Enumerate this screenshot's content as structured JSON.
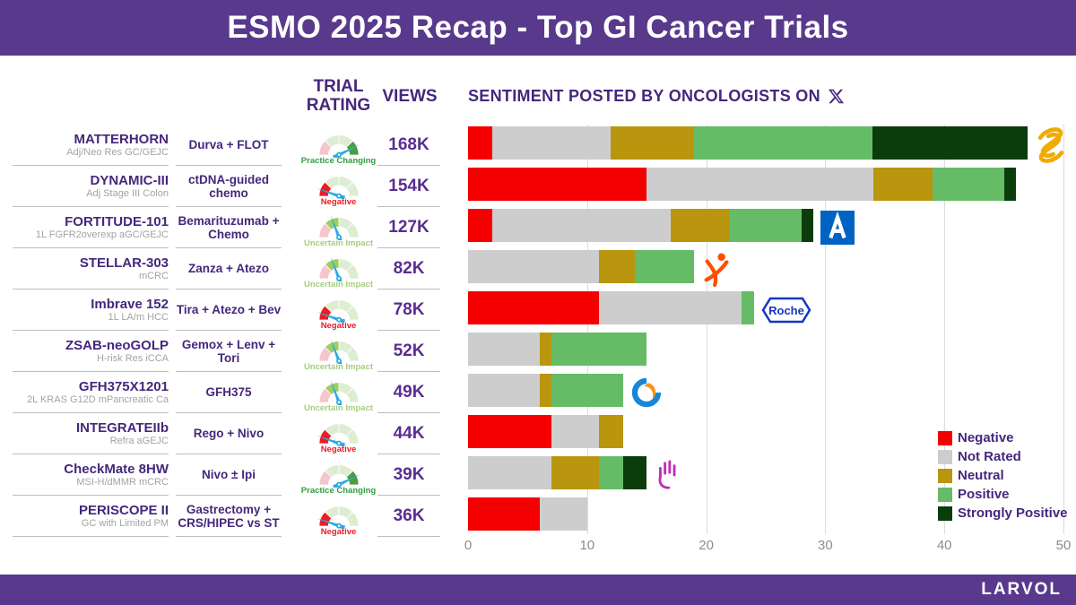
{
  "header": {
    "title": "ESMO 2025 Recap - Top GI Cancer Trials"
  },
  "footer": {
    "brand": "LARVOL"
  },
  "columns": {
    "trial_rating": "TRIAL RATING",
    "views": "VIEWS"
  },
  "chart_title": "SENTIMENT POSTED BY ONCOLOGISTS ON",
  "colors": {
    "brand_purple": "#59398C",
    "text_purple": "#45277C",
    "views_purple": "#5A2D91",
    "needle_cyan": "#2BAAE2",
    "axis_gray": "#8C8C8C"
  },
  "rating_styles": {
    "practice_changing": {
      "label": "Practice Changing",
      "label_color": "#2F9E3E",
      "segments": [
        "#F5C6CB",
        "#DDEDD2",
        "#DDEDD2",
        "#4C9E3C"
      ],
      "needle_deg": 26
    },
    "negative": {
      "label": "Negative",
      "label_color": "#ED1B24",
      "segments": [
        "#ED1B24",
        "#DDEDD2",
        "#DDEDD2",
        "#DDEDD2"
      ],
      "needle_deg": 161
    },
    "uncertain": {
      "label": "Uncertain Impact",
      "label_color": "#A5CE7D",
      "segments": [
        "#F5C6CB",
        "#9CCE62",
        "#DDEDD2",
        "#DDEDD2"
      ],
      "needle_deg": 111
    }
  },
  "rows": [
    {
      "trial": "MATTERHORN",
      "subtitle": "Adj/Neo Res GC/GEJC",
      "treatment": "Durva + FLOT",
      "rating": "practice_changing",
      "views": "168K",
      "logo": "astrazeneca-logo"
    },
    {
      "trial": "DYNAMIC-III",
      "subtitle": "Adj Stage III Colon",
      "treatment": "ctDNA-guided chemo",
      "rating": "negative",
      "views": "154K",
      "logo": null
    },
    {
      "trial": "FORTITUDE-101",
      "subtitle": "1L FGFR2overexp aGC/GEJC",
      "treatment": "Bemarituzumab + Chemo",
      "rating": "uncertain",
      "views": "127K",
      "logo": "amgen-logo"
    },
    {
      "trial": "STELLAR-303",
      "subtitle": "mCRC",
      "treatment": "Zanza + Atezo",
      "rating": "uncertain",
      "views": "82K",
      "logo": "exelixis-logo"
    },
    {
      "trial": "Imbrave 152",
      "subtitle": "1L LA/m HCC",
      "treatment": "Tira + Atezo + Bev",
      "rating": "negative",
      "views": "78K",
      "logo": "roche-logo"
    },
    {
      "trial": "ZSAB-neoGOLP",
      "subtitle": "H-risk Res iCCA",
      "treatment": "Gemox + Lenv + Tori",
      "rating": "uncertain",
      "views": "52K",
      "logo": null
    },
    {
      "trial": "GFH375X1201",
      "subtitle": "2L KRAS G12D mPancreatic Ca",
      "treatment": "GFH375",
      "rating": "uncertain",
      "views": "49K",
      "logo": "genfleet-logo"
    },
    {
      "trial": "INTEGRATEIIb",
      "subtitle": "Refra aGEJC",
      "treatment": "Rego + Nivo",
      "rating": "negative",
      "views": "44K",
      "logo": null
    },
    {
      "trial": "CheckMate 8HW",
      "subtitle": "MSI-H/dMMR mCRC",
      "treatment": "Nivo ± Ipi",
      "rating": "practice_changing",
      "views": "39K",
      "logo": "bms-hand-logo"
    },
    {
      "trial": "PERISCOPE II",
      "subtitle": "GC with Limited PM",
      "treatment": "Gastrectomy + CRS/HIPEC vs ST",
      "rating": "negative",
      "views": "36K",
      "logo": null
    }
  ],
  "chart_data": {
    "type": "bar",
    "orientation": "horizontal",
    "stacked": true,
    "title": "SENTIMENT POSTED BY ONCOLOGISTS ON X",
    "categories": [
      "MATTERHORN",
      "DYNAMIC-III",
      "FORTITUDE-101",
      "STELLAR-303",
      "Imbrave 152",
      "ZSAB-neoGOLP",
      "GFH375X1201",
      "INTEGRATEIIb",
      "CheckMate 8HW",
      "PERISCOPE II"
    ],
    "series": [
      {
        "name": "Negative",
        "color": "#F40000",
        "values": [
          2,
          15,
          2,
          0,
          11,
          0,
          0,
          7,
          0,
          6
        ]
      },
      {
        "name": "Not Rated",
        "color": "#CDCDCD",
        "values": [
          10,
          19,
          15,
          11,
          12,
          6,
          6,
          4,
          7,
          4
        ]
      },
      {
        "name": "Neutral",
        "color": "#B9960E",
        "values": [
          7,
          5,
          5,
          3,
          0,
          1,
          1,
          2,
          4,
          0
        ]
      },
      {
        "name": "Positive",
        "color": "#66BC66",
        "values": [
          15,
          6,
          6,
          5,
          1,
          8,
          6,
          0,
          2,
          0
        ]
      },
      {
        "name": "Strongly Positive",
        "color": "#0B3D0C",
        "values": [
          13,
          1,
          1,
          0,
          0,
          0,
          0,
          0,
          2,
          0
        ]
      }
    ],
    "totals": [
      47,
      46,
      29,
      19,
      24,
      15,
      13,
      13,
      15,
      10
    ],
    "xlim": [
      0,
      50
    ],
    "xticks": [
      0,
      10,
      20,
      30,
      40,
      50
    ],
    "gridlines": true,
    "legend_position": "bottom-right"
  }
}
